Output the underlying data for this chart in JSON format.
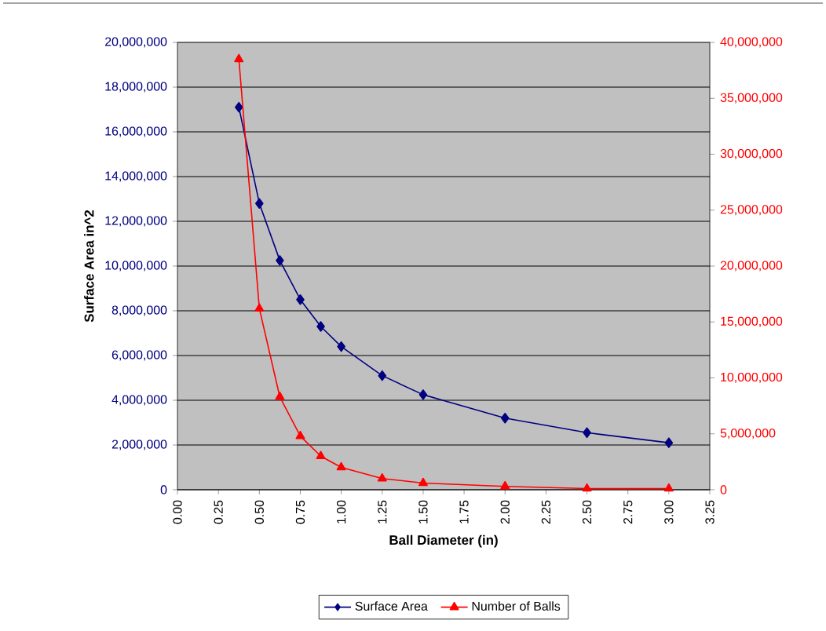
{
  "chart_data": {
    "type": "line",
    "xlabel": "Ball Diameter (in)",
    "ylabel": "Surface Area in^2",
    "x": [
      0.375,
      0.5,
      0.625,
      0.75,
      0.875,
      1.0,
      1.25,
      1.5,
      2.0,
      2.5,
      3.0
    ],
    "series": [
      {
        "name": "Surface Area",
        "color": "#000080",
        "marker": "diamond",
        "values": [
          17100000,
          12800000,
          10250000,
          8500000,
          7300000,
          6400000,
          5100000,
          4250000,
          3200000,
          2550000,
          2100000
        ]
      },
      {
        "name": "Number of Balls",
        "color": "#ff0000",
        "marker": "triangle",
        "axis": "y2",
        "values": [
          38500000,
          16200000,
          8300000,
          4800000,
          3000000,
          2000000,
          1000000,
          600000,
          300000,
          100000,
          100000
        ]
      }
    ],
    "xlim": [
      0,
      3.25
    ],
    "xticks": [
      {
        "value": 0,
        "label": "0.00"
      },
      {
        "value": 0.25,
        "label": "0.25"
      },
      {
        "value": 0.5,
        "label": "0.50"
      },
      {
        "value": 0.75,
        "label": "0.75"
      },
      {
        "value": 1,
        "label": "1.00"
      },
      {
        "value": 1.25,
        "label": "1.25"
      },
      {
        "value": 1.5,
        "label": "1.50"
      },
      {
        "value": 1.75,
        "label": "1.75"
      },
      {
        "value": 2,
        "label": "2.00"
      },
      {
        "value": 2.25,
        "label": "2.25"
      },
      {
        "value": 2.5,
        "label": "2.50"
      },
      {
        "value": 2.75,
        "label": "2.75"
      },
      {
        "value": 3,
        "label": "3.00"
      },
      {
        "value": 3.25,
        "label": "3.25"
      }
    ],
    "ylim": [
      0,
      20000000
    ],
    "yticks": [
      0,
      {
        "value": 2000000,
        "label": "2,000,000"
      },
      {
        "value": 4000000,
        "label": "4,000,000"
      },
      {
        "value": 6000000,
        "label": "6,000,000"
      },
      {
        "value": 8000000,
        "label": "8,000,000"
      },
      {
        "value": 10000000,
        "label": "10,000,000"
      },
      {
        "value": 12000000,
        "label": "12,000,000"
      },
      {
        "value": 14000000,
        "label": "14,000,000"
      },
      {
        "value": 16000000,
        "label": "16,000,000"
      },
      {
        "value": 18000000,
        "label": "18,000,000"
      },
      {
        "value": 20000000,
        "label": "20,000,000"
      }
    ],
    "y2lim": [
      0,
      40000000
    ],
    "y2ticks": [
      0,
      {
        "value": 5000000,
        "label": "5,000,000"
      },
      {
        "value": 10000000,
        "label": "10,000,000"
      },
      {
        "value": 15000000,
        "label": "15,000,000"
      },
      {
        "value": 20000000,
        "label": "20,000,000"
      },
      {
        "value": 25000000,
        "label": "25,000,000"
      },
      {
        "value": 30000000,
        "label": "30,000,000"
      },
      {
        "value": 35000000,
        "label": "35,000,000"
      },
      {
        "value": 40000000,
        "label": "40,000,000"
      }
    ],
    "grid": "y",
    "legend": "bottom",
    "line_style": "solid"
  }
}
